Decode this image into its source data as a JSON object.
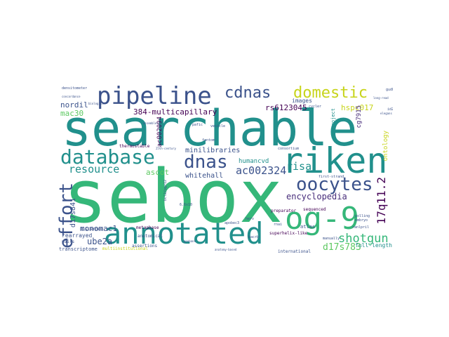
{
  "colors": {
    "teal": "#21908c",
    "green": "#35b779",
    "lime": "#5ec962",
    "yellow": "#c7d41a",
    "blue": "#3b528b",
    "purple": "#472c7a",
    "dark": "#440154"
  },
  "words": {
    "searchable": "searchable",
    "sebox": "sebox",
    "annotated": "annotated",
    "og9": "og-9",
    "riken": "riken",
    "database": "database",
    "pipeline": "pipeline",
    "cdnas": "cdnas",
    "domestic": "domestic",
    "dnas": "dnas",
    "oocytes": "oocytes",
    "effort": "effort",
    "resource": "resource",
    "ac002324": "ac002324",
    "shotgun": "shotgun",
    "encyclopedia": "encyclopedia",
    "risa": "risa",
    "q12": "17q11.2",
    "d17s783": "d17s783",
    "d17s841": "d17s841",
    "ube2a": "ube2a",
    "monomac1": "monomac1",
    "rearrayed": "rearrayed",
    "multicap": "384-multicapillary",
    "rs6123045": "rs6123045",
    "hspc017": "hspc017",
    "ontology": "ontology",
    "nordil": "nordil",
    "mac30": "mac30",
    "images": "images",
    "minilibraries": "minilibraries",
    "ascot": "ascot",
    "whitehall": "whitehall",
    "humancvd": "humancvd",
    "ac002094": "ac002094",
    "cg7915": "cg7915",
    "project": "project",
    "fulllength": "full-length",
    "transcriptome": "transcriptome",
    "multiinst": "multiinstitutional",
    "atlas": "atlas",
    "sequenced": "sequenced",
    "preparator": "preparator",
    "metaphase": "metaphase",
    "thermostable": "thermostable",
    "superhelix": "superhelix-like",
    "discerned": "discerned",
    "pairs": "pairs",
    "assertions": "assertions",
    "international": "international",
    "manually": "manually",
    "apobec3": "apobec3",
    "bacrb": "bacrb",
    "firststrand": "first-strand",
    "ranlpril": "ranlpril",
    "anatomical": "anatomical",
    "densitometer": "densitometer",
    "gudkap": "gudkap",
    "longread": "long-read",
    "elegans": "elegans",
    "cycler": "cycler",
    "vesicle": "vesicle",
    "fantom": "fantom",
    "consortium": "consortium",
    "polling": "polling",
    "embryo": "embryo",
    "herv": "herv",
    "rnai": "rnai",
    "genbank": "genbank",
    "anatomybased": "anatomy-based",
    "biologist": "biologist",
    "assembler": "assembler",
    "concordance": "concordance",
    "id2": "id2",
    "p6x10": "6.6x10",
    "bcl2": "bcl2/pgr12",
    "pafic": "pafic",
    "s25cen": "25th-century"
  }
}
